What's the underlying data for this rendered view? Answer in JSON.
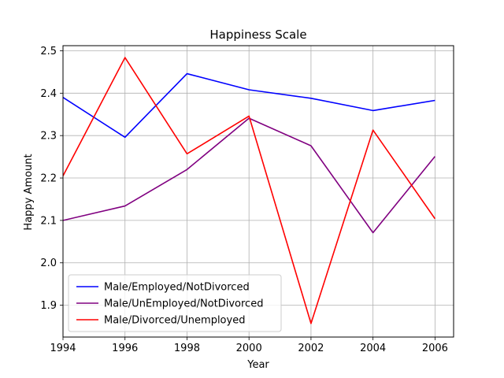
{
  "chart_data": {
    "type": "line",
    "title": "Happiness Scale",
    "xlabel": "Year",
    "ylabel": "Happy Amount",
    "xlim": [
      1994,
      2006.6
    ],
    "ylim": [
      1.825,
      2.512
    ],
    "x_ticks": [
      1994,
      1996,
      1998,
      2000,
      2002,
      2004,
      2006
    ],
    "y_ticks": [
      1.9,
      2.0,
      2.1,
      2.2,
      2.3,
      2.4,
      2.5
    ],
    "grid": true,
    "legend_position": "lower-left",
    "x": [
      1994,
      1996,
      1998,
      2000,
      2002,
      2004,
      2006
    ],
    "series": [
      {
        "name": "Male/Employed/NotDivorced",
        "color": "#0000ff",
        "values": [
          2.39,
          2.296,
          2.446,
          2.408,
          2.388,
          2.359,
          2.383
        ]
      },
      {
        "name": "Male/UnEmployed/NotDivorced",
        "color": "#800080",
        "values": [
          2.1,
          2.134,
          2.22,
          2.341,
          2.276,
          2.071,
          2.251
        ]
      },
      {
        "name": "Male/Divorced/Unemployed",
        "color": "#ff0000",
        "values": [
          2.205,
          2.484,
          2.257,
          2.346,
          1.857,
          2.313,
          2.104
        ]
      }
    ]
  }
}
